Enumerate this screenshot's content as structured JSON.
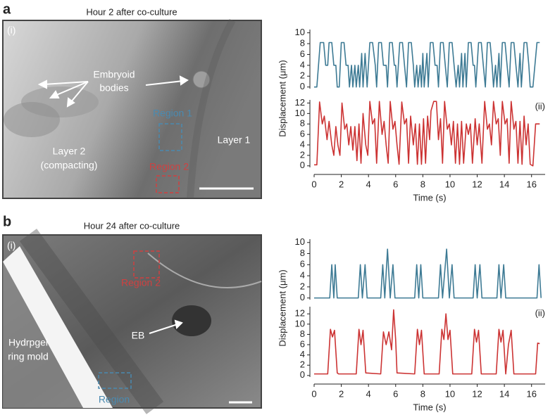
{
  "panels": [
    {
      "letter": "a",
      "title": "Hour 2 after co-culture",
      "labels": {
        "tag": "(i)",
        "embryoid": "Embryoid",
        "bodies": "bodies",
        "region1": "Region 1",
        "layer1": "Layer 1",
        "layer2": "Layer 2",
        "compacting": "(compacting)",
        "region2": "Region 2"
      }
    },
    {
      "letter": "b",
      "title": "Hour 24 after co-culture",
      "labels": {
        "tag": "(i)",
        "region2": "Region 2",
        "eb": "EB",
        "hydrogel": "Hydrpgel",
        "ring_mold": "ring mold",
        "region": "Region"
      }
    }
  ],
  "chart_data": [
    {
      "type": "line",
      "xlim": [
        0,
        17
      ],
      "ylim": [
        -0.3,
        10.6
      ],
      "yticks": [
        0,
        2,
        4,
        6,
        8,
        10
      ],
      "x": [
        0,
        0.2,
        0.45,
        0.7,
        0.85,
        1.0,
        1.1,
        1.3,
        1.45,
        1.6,
        1.7,
        1.85,
        2.0,
        2.2,
        2.35,
        2.5,
        2.6,
        2.75,
        2.85,
        3.0,
        3.1,
        3.25,
        3.35,
        3.5,
        3.6,
        3.75,
        3.9,
        4.1,
        4.3,
        4.5,
        4.6,
        4.75,
        4.95,
        5.1,
        5.3,
        5.4,
        5.55,
        5.75,
        5.9,
        6.0,
        6.1,
        6.3,
        6.5,
        6.65,
        6.8,
        6.95,
        7.15,
        7.3,
        7.4,
        7.55,
        7.65,
        7.8,
        7.9,
        8.0,
        8.1,
        8.3,
        8.4,
        8.55,
        8.75,
        8.9,
        9.05,
        9.15,
        9.3,
        9.5,
        9.65,
        9.8,
        9.95,
        10.15,
        10.3,
        10.45,
        10.6,
        10.7,
        10.85,
        10.95,
        11.1,
        11.2,
        11.35,
        11.55,
        11.7,
        11.8,
        11.9,
        12.1,
        12.3,
        12.45,
        12.6,
        12.75,
        12.95,
        13.1,
        13.2,
        13.35,
        13.45,
        13.6,
        13.7,
        13.85,
        14.05,
        14.2,
        14.35,
        14.5,
        14.7,
        14.85,
        15.0,
        15.15,
        15.25,
        15.45,
        15.65,
        15.8,
        15.9,
        16.1,
        16.4,
        16.6
      ],
      "series": [
        {
          "color": "#3d7a94",
          "values": [
            0,
            0,
            8.2,
            8.2,
            4,
            4,
            8.2,
            8.2,
            4,
            4,
            0,
            0,
            8.2,
            8.2,
            4,
            4,
            0,
            4,
            0,
            4,
            0,
            4,
            0,
            6.2,
            0,
            6.2,
            0,
            8.2,
            8.2,
            4,
            0,
            8.2,
            8.2,
            4,
            4,
            0,
            8.2,
            8.2,
            4,
            4,
            0,
            8.2,
            8.2,
            4,
            0,
            8.2,
            8.2,
            4,
            0,
            4,
            0,
            4,
            0,
            6.2,
            0,
            6.2,
            0,
            8.2,
            8.2,
            4,
            4,
            0,
            8.2,
            8.2,
            4,
            0,
            8.2,
            8.2,
            4,
            0,
            4,
            0,
            6.2,
            0,
            6.2,
            0,
            8.2,
            8.2,
            4,
            4,
            0,
            8.2,
            8.2,
            4,
            0,
            8.2,
            8.2,
            4,
            0,
            4,
            0,
            6.2,
            0,
            8.2,
            8.2,
            4,
            0,
            8.2,
            8.2,
            4,
            0,
            6.2,
            0,
            8.2,
            8.2,
            4,
            0,
            0,
            8.2,
            8.2
          ]
        }
      ]
    },
    {
      "type": "line",
      "xlim": [
        0,
        17
      ],
      "ylim": [
        -0.3,
        12.6
      ],
      "yticks": [
        0,
        2,
        4,
        6,
        8,
        10,
        12
      ],
      "xticks": [
        0,
        2,
        4,
        6,
        8,
        10,
        12,
        14,
        16
      ],
      "x_label": "Time (s)",
      "y_label": "Displacement (μm)",
      "annotation": "(ii)",
      "x": [
        0,
        0.2,
        0.4,
        0.6,
        0.75,
        0.95,
        1.1,
        1.3,
        1.45,
        1.6,
        1.75,
        1.9,
        2.05,
        2.25,
        2.4,
        2.55,
        2.7,
        2.85,
        3.0,
        3.15,
        3.3,
        3.45,
        3.6,
        3.8,
        3.95,
        4.1,
        4.3,
        4.45,
        4.6,
        4.8,
        5.0,
        5.15,
        5.3,
        5.45,
        5.6,
        5.8,
        5.95,
        6.1,
        6.25,
        6.45,
        6.65,
        6.8,
        6.95,
        7.1,
        7.3,
        7.45,
        7.6,
        7.75,
        7.9,
        8.05,
        8.2,
        8.35,
        8.5,
        8.6,
        8.8,
        9.0,
        9.15,
        9.3,
        9.45,
        9.6,
        9.8,
        9.95,
        10.1,
        10.25,
        10.4,
        10.55,
        10.7,
        10.85,
        11.0,
        11.2,
        11.35,
        11.5,
        11.65,
        11.85,
        12.0,
        12.15,
        12.35,
        12.55,
        12.75,
        12.9,
        13.05,
        13.2,
        13.4,
        13.55,
        13.7,
        13.85,
        14.05,
        14.2,
        14.35,
        14.5,
        14.7,
        14.85,
        15.0,
        15.15,
        15.3,
        15.45,
        15.6,
        15.75,
        15.9,
        16.1,
        16.3,
        16.6
      ],
      "series": [
        {
          "color": "#cc3333",
          "values": [
            0.2,
            0.2,
            12.2,
            8,
            9.5,
            5,
            8.5,
            4,
            2,
            7.5,
            4,
            2,
            12,
            7,
            8,
            4,
            7.5,
            3,
            7.5,
            1,
            8,
            0.5,
            10,
            4,
            2,
            12.3,
            8,
            9,
            0.5,
            12.3,
            6,
            8.5,
            4,
            0.5,
            12.3,
            7,
            8.5,
            4,
            0.3,
            12.2,
            8,
            9,
            0.5,
            9.5,
            4,
            8,
            0.3,
            8,
            0.3,
            9,
            0.5,
            9.5,
            5,
            10.5,
            12.3,
            12.3,
            5,
            9,
            0.5,
            12.3,
            7,
            8,
            4,
            8.5,
            0.5,
            8,
            0.3,
            8.5,
            0.5,
            8,
            6,
            8,
            0.5,
            9,
            4,
            8,
            0.5,
            12.3,
            7,
            8,
            4,
            12.3,
            8,
            9,
            2,
            12.3,
            8,
            9,
            0.5,
            12.3,
            7,
            8.5,
            0.5,
            8.5,
            0.3,
            9.5,
            4,
            8,
            0.3,
            0,
            8,
            8
          ]
        }
      ]
    },
    {
      "type": "line",
      "xlim": [
        0,
        17
      ],
      "ylim": [
        -0.3,
        10.6
      ],
      "yticks": [
        0,
        2,
        4,
        6,
        8,
        10
      ],
      "x": [
        0,
        1.15,
        1.3,
        1.45,
        1.55,
        1.7,
        3.25,
        3.4,
        3.55,
        3.75,
        3.9,
        4.9,
        5.05,
        5.2,
        5.4,
        5.6,
        5.8,
        5.95,
        7.4,
        7.55,
        7.7,
        7.85,
        8.0,
        9.15,
        9.3,
        9.45,
        9.75,
        9.95,
        10.15,
        10.3,
        11.7,
        11.85,
        12.0,
        12.2,
        12.35,
        13.45,
        13.6,
        13.75,
        13.95,
        14.1,
        16.4,
        16.55,
        16.7
      ],
      "series": [
        {
          "color": "#3d7a94",
          "values": [
            0,
            0,
            6,
            0,
            6,
            0,
            0,
            6,
            0,
            6,
            0,
            0,
            6,
            0,
            8.8,
            0,
            6,
            0,
            0,
            6,
            0,
            6,
            0,
            0,
            6,
            0,
            8.8,
            0,
            6,
            0,
            0,
            6,
            0,
            6,
            0,
            0,
            6,
            0,
            6,
            0,
            0,
            6,
            0
          ]
        }
      ]
    },
    {
      "type": "line",
      "xlim": [
        0,
        17
      ],
      "ylim": [
        -0.3,
        13.4
      ],
      "yticks": [
        0,
        2,
        4,
        6,
        8,
        10,
        12
      ],
      "xticks": [
        0,
        2,
        4,
        6,
        8,
        10,
        12,
        14,
        16
      ],
      "x_label": "Time (s)",
      "y_label": "Displacement (μm)",
      "annotation": "(ii)",
      "x": [
        0,
        1.0,
        1.2,
        1.35,
        1.5,
        1.7,
        1.8,
        3.1,
        3.3,
        3.45,
        3.6,
        3.8,
        4.9,
        5.1,
        5.3,
        5.5,
        5.7,
        5.85,
        6.0,
        6.1,
        7.4,
        7.6,
        7.75,
        7.9,
        8.1,
        9.2,
        9.4,
        9.55,
        9.7,
        9.85,
        10.0,
        10.2,
        11.6,
        11.8,
        11.95,
        12.1,
        12.3,
        13.4,
        13.6,
        13.75,
        13.9,
        14.1,
        14.3,
        14.5,
        14.7,
        16.3,
        16.45,
        16.6
      ],
      "series": [
        {
          "color": "#cc3333",
          "values": [
            0.3,
            0.3,
            9,
            7.5,
            8.8,
            0.5,
            0.3,
            0.3,
            9,
            6,
            8.8,
            0.5,
            0.3,
            8.5,
            6,
            8.5,
            5,
            12.8,
            7,
            0.5,
            0.3,
            9,
            6,
            8.8,
            0.3,
            0.3,
            9,
            7,
            12,
            7,
            8.8,
            0.3,
            0.3,
            9,
            6.5,
            8.8,
            0.3,
            0.3,
            9,
            6.5,
            8.8,
            0.3,
            6,
            8.8,
            0.3,
            0.3,
            6.3,
            6.2
          ]
        }
      ]
    }
  ]
}
